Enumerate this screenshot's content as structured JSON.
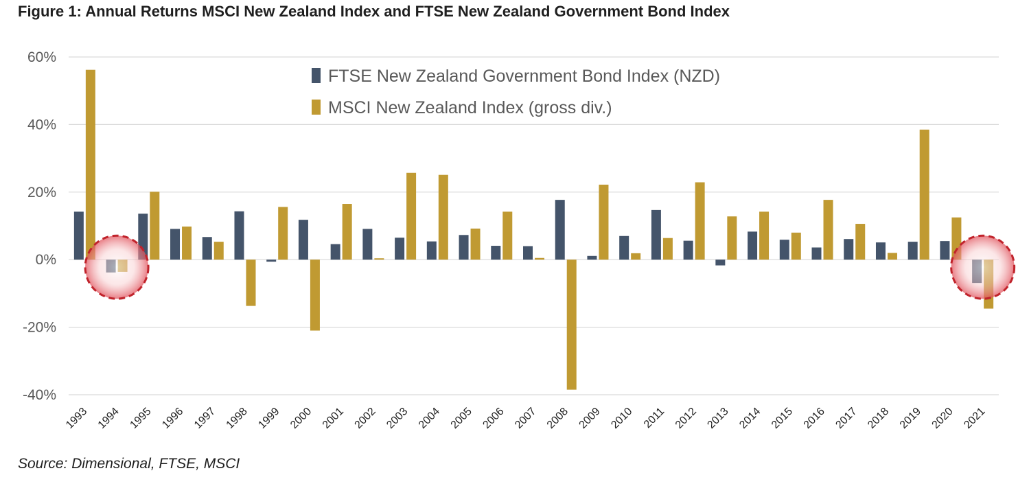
{
  "title": "Figure 1: Annual Returns MSCI New Zealand Index and FTSE New Zealand Government Bond Index",
  "source": "Source: Dimensional, FTSE, MSCI",
  "chart_data": {
    "type": "bar",
    "title": "Figure 1: Annual Returns MSCI New Zealand Index and FTSE New Zealand Government Bond Index",
    "xlabel": "",
    "ylabel": "",
    "ylim": [
      -40,
      60
    ],
    "yticks": [
      60,
      40,
      20,
      0,
      -20,
      -40
    ],
    "ytick_labels": [
      "60%",
      "40%",
      "20%",
      "0%",
      "-20%",
      "-40%"
    ],
    "grid": "horizontal",
    "legend_position": "top-center",
    "categories": [
      "1993",
      "1994",
      "1995",
      "1996",
      "1997",
      "1998",
      "1999",
      "2000",
      "2001",
      "2002",
      "2003",
      "2004",
      "2005",
      "2006",
      "2007",
      "2008",
      "2009",
      "2010",
      "2011",
      "2012",
      "2013",
      "2014",
      "2015",
      "2016",
      "2017",
      "2018",
      "2019",
      "2020",
      "2021"
    ],
    "series": [
      {
        "name": "FTSE New Zealand Government Bond Index (NZD)",
        "color": "#44546a",
        "values": [
          14.2,
          -3.8,
          13.6,
          9.1,
          6.7,
          14.3,
          -0.6,
          11.8,
          4.6,
          9.1,
          6.5,
          5.4,
          7.3,
          4.1,
          4.0,
          17.7,
          1.1,
          7.0,
          14.7,
          5.6,
          -1.7,
          8.3,
          5.9,
          3.6,
          6.1,
          5.1,
          5.3,
          5.5,
          -6.9
        ]
      },
      {
        "name": "MSCI New Zealand Index (gross div.)",
        "color": "#c09a32",
        "values": [
          56.2,
          -3.6,
          20.1,
          9.8,
          5.3,
          -13.7,
          15.6,
          -21.0,
          16.5,
          0.4,
          25.7,
          25.1,
          9.2,
          14.2,
          0.5,
          -38.5,
          22.2,
          1.9,
          6.4,
          22.9,
          12.8,
          14.2,
          8.0,
          17.7,
          10.6,
          2.0,
          38.5,
          12.5,
          -14.5
        ]
      }
    ],
    "annotations": [
      {
        "type": "highlight-circle",
        "category": "1994"
      },
      {
        "type": "highlight-circle",
        "category": "2021"
      }
    ]
  }
}
